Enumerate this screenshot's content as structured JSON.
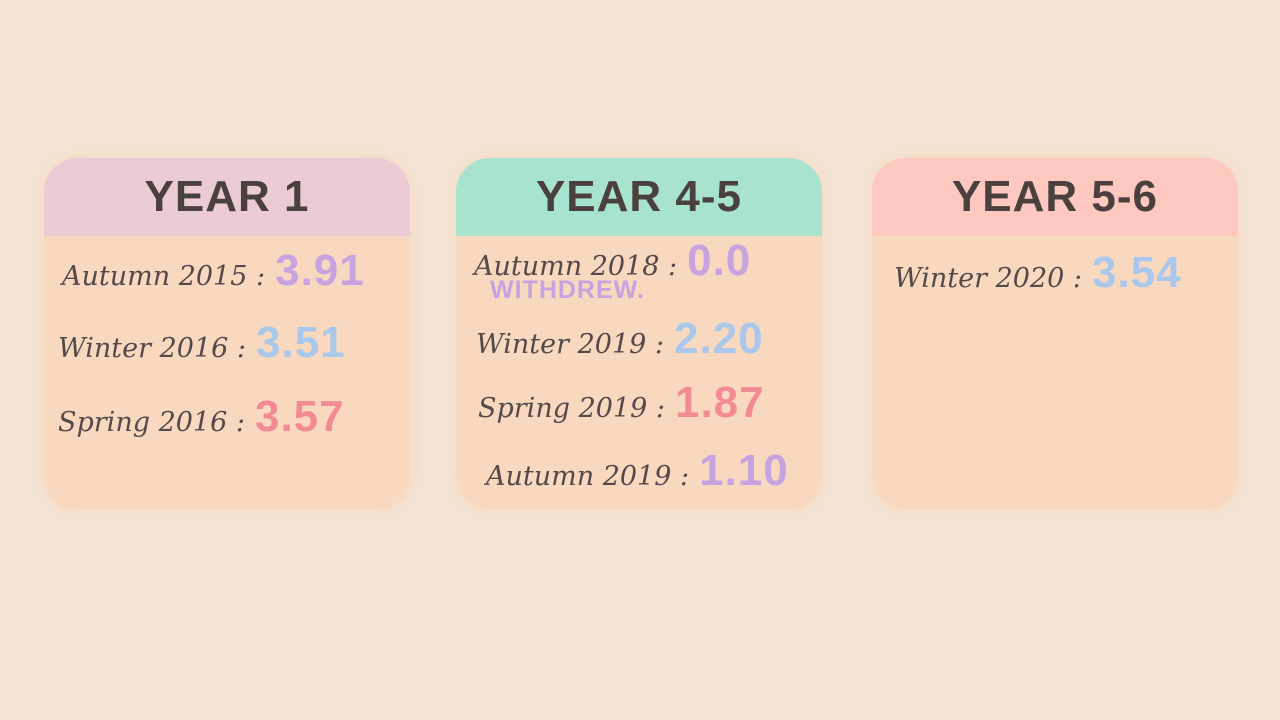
{
  "colors": {
    "background": "#f3e4d5",
    "card_body": "#f8d9c0",
    "text": "#4a403d",
    "purple": "#c7a3e0",
    "blue": "#a9c8ec",
    "pink": "#f38b95"
  },
  "cards": [
    {
      "title": "YEAR 1",
      "header_color": "#ebcbd6",
      "entries": [
        {
          "term": "Autumn 2015 :",
          "gpa": "3.91",
          "color": "#c7a3e0"
        },
        {
          "term": "Winter 2016 :",
          "gpa": "3.51",
          "color": "#a9c8ec"
        },
        {
          "term": "Spring 2016 :",
          "gpa": "3.57",
          "color": "#f38b95"
        }
      ]
    },
    {
      "title": "YEAR 4-5",
      "header_color": "#a8e3cf",
      "entries": [
        {
          "term": "Autumn 2018 :",
          "gpa": "0.0",
          "color": "#c7a3e0",
          "note": "WITHDREW."
        },
        {
          "term": "Winter 2019 :",
          "gpa": "2.20",
          "color": "#a9c8ec"
        },
        {
          "term": "Spring 2019 :",
          "gpa": "1.87",
          "color": "#f38b95"
        },
        {
          "term": "Autumn 2019 :",
          "gpa": "1.10",
          "color": "#c7a3e0"
        }
      ]
    },
    {
      "title": "YEAR 5-6",
      "header_color": "#fcc8c0",
      "entries": [
        {
          "term": "Winter 2020 :",
          "gpa": "3.54",
          "color": "#a9c8ec"
        }
      ]
    }
  ]
}
